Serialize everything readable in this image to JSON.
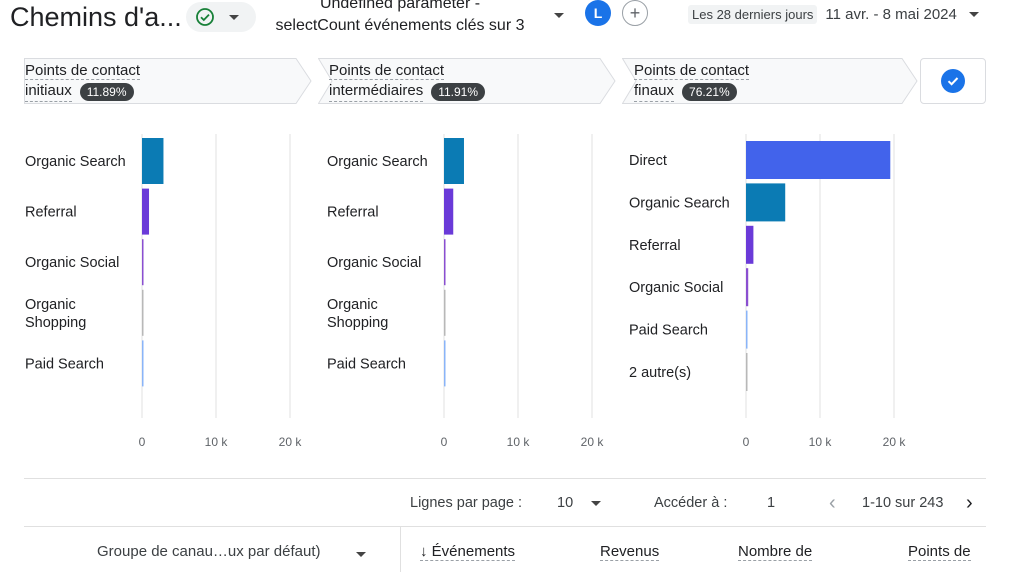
{
  "header": {
    "title": "Chemins d'a...",
    "report_line1": "Undefined parameter -",
    "report_line2": "selectCount événements clés sur 3",
    "avatar_letter": "L",
    "add_symbol": "+",
    "date_label": "Les 28 derniers jours",
    "date_value": "11 avr. - 8 mai 2024"
  },
  "steps": [
    {
      "line1": "Points de contact",
      "line2": "initiaux",
      "percent": "11.89%"
    },
    {
      "line1": "Points de contact",
      "line2": "intermédiaires",
      "percent": "11.91%"
    },
    {
      "line1": "Points de contact",
      "line2": "finaux",
      "percent": "76.21%"
    }
  ],
  "colors": {
    "organic_search": "#0b7bb4",
    "referral": "#6a3ad8",
    "organic_social": "#8a4fd0",
    "organic_shopping": "#b8b8b8",
    "paid_search": "#8ab4f8",
    "direct": "#4263eb",
    "accent": "#1a73e8"
  },
  "chart_data": [
    {
      "type": "bar",
      "orientation": "horizontal",
      "categories": [
        "Organic Search",
        "Referral",
        "Organic Social",
        "Organic\nShopping",
        "Paid Search"
      ],
      "values": [
        2900,
        950,
        150,
        60,
        150
      ],
      "xlim": [
        0,
        20000
      ],
      "xticks": [
        "0",
        "10 k",
        "20 k"
      ]
    },
    {
      "type": "bar",
      "orientation": "horizontal",
      "categories": [
        "Organic Search",
        "Referral",
        "Organic Social",
        "Organic\nShopping",
        "Paid Search"
      ],
      "values": [
        2700,
        1250,
        200,
        60,
        150
      ],
      "xlim": [
        0,
        20000
      ],
      "xticks": [
        "0",
        "10 k",
        "20 k"
      ]
    },
    {
      "type": "bar",
      "orientation": "horizontal",
      "categories": [
        "Direct",
        "Organic Search",
        "Referral",
        "Organic Social",
        "Paid Search",
        "2 autre(s)"
      ],
      "values": [
        19500,
        5300,
        1000,
        300,
        150,
        80
      ],
      "xlim": [
        0,
        20000
      ],
      "xticks": [
        "0",
        "10 k",
        "20 k"
      ]
    }
  ],
  "pager": {
    "rows_label": "Lignes par page :",
    "rows_value": "10",
    "goto_label": "Accéder à :",
    "goto_value": "1",
    "range": "1-10 sur 243"
  },
  "table": {
    "dimension": "Groupe de canau…ux par défaut)",
    "columns": [
      "↓ Événements",
      "Revenus",
      "Nombre de",
      "Points de"
    ]
  }
}
